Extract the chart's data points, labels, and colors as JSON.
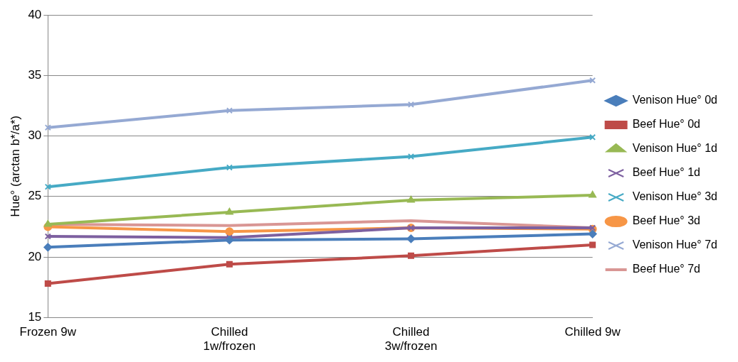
{
  "chart_data": {
    "type": "line",
    "ylabel": "Hue° (arctan b*/a*)",
    "categories": [
      "Frozen 9w",
      "Chilled 1w/frozen",
      "Chilled 3w/frozen",
      "Chilled 9w"
    ],
    "ylim": [
      15,
      40
    ],
    "yticks": [
      15,
      20,
      25,
      30,
      35,
      40
    ],
    "grid": "y",
    "legend": "right",
    "series": [
      {
        "name": "Venison Hue° 0d",
        "color": "#4a7ebb",
        "marker": "diamond",
        "values": [
          20.8,
          21.4,
          21.5,
          21.9
        ]
      },
      {
        "name": "Beef Hue° 0d",
        "color": "#be4b48",
        "marker": "square",
        "values": [
          17.8,
          19.4,
          20.1,
          21.0
        ]
      },
      {
        "name": "Venison Hue° 1d",
        "color": "#98b954",
        "marker": "triangle",
        "values": [
          22.7,
          23.7,
          24.7,
          25.1
        ]
      },
      {
        "name": "Beef Hue° 1d",
        "color": "#7d60a0",
        "marker": "cross",
        "values": [
          21.7,
          21.6,
          22.4,
          22.4
        ]
      },
      {
        "name": "Venison Hue° 3d",
        "color": "#46aac5",
        "marker": "cross",
        "values": [
          25.8,
          27.4,
          28.3,
          29.9
        ]
      },
      {
        "name": "Beef Hue° 3d",
        "color": "#f79646",
        "marker": "circle",
        "values": [
          22.5,
          22.1,
          22.4,
          22.3
        ]
      },
      {
        "name": "Venison Hue° 7d",
        "color": "#95a9d3",
        "marker": "cross",
        "values": [
          30.7,
          32.1,
          32.6,
          34.6
        ]
      },
      {
        "name": "Beef Hue° 7d",
        "color": "#d99694",
        "marker": "none",
        "values": [
          22.7,
          22.6,
          23.0,
          22.4
        ]
      }
    ]
  }
}
